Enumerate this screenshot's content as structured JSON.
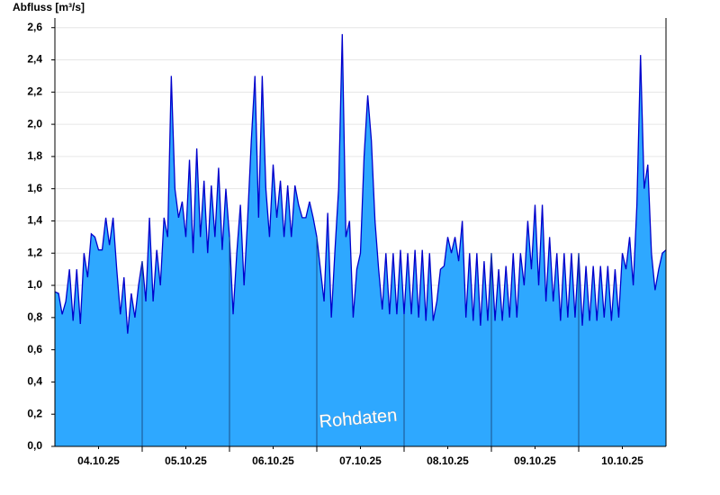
{
  "chart_data": {
    "type": "area",
    "y_label": "Abfluss [m³/s]",
    "annotation": "Rohdaten",
    "fill_color": "#2ea8ff",
    "line_color": "#0000cc",
    "grid": true,
    "xlim": [
      0,
      168
    ],
    "ylim": [
      0,
      2.66
    ],
    "yticks": [
      {
        "value": 0,
        "label": "0,0"
      },
      {
        "value": 0.2,
        "label": "0,2"
      },
      {
        "value": 0.4,
        "label": "0,4"
      },
      {
        "value": 0.6,
        "label": "0,6"
      },
      {
        "value": 0.8,
        "label": "0,8"
      },
      {
        "value": 1.0,
        "label": "1,0"
      },
      {
        "value": 1.2,
        "label": "1,2"
      },
      {
        "value": 1.4,
        "label": "1,4"
      },
      {
        "value": 1.6,
        "label": "1,6"
      },
      {
        "value": 1.8,
        "label": "1,8"
      },
      {
        "value": 2.0,
        "label": "2,0"
      },
      {
        "value": 2.2,
        "label": "2,2"
      },
      {
        "value": 2.4,
        "label": "2,4"
      },
      {
        "value": 2.6,
        "label": "2,6"
      }
    ],
    "xticks": [
      {
        "value": 12,
        "label": "04.10.25"
      },
      {
        "value": 36,
        "label": "05.10.25"
      },
      {
        "value": 60,
        "label": "06.10.25"
      },
      {
        "value": 84,
        "label": "07.10.25"
      },
      {
        "value": 108,
        "label": "08.10.25"
      },
      {
        "value": 132,
        "label": "09.10.25"
      },
      {
        "value": 156,
        "label": "10.10.25"
      }
    ],
    "x_day_lines": [
      24,
      48,
      72,
      96,
      120,
      144
    ],
    "x": [
      0,
      1,
      2,
      3,
      4,
      5,
      6,
      7,
      8,
      9,
      10,
      11,
      12,
      13,
      14,
      15,
      16,
      17,
      18,
      19,
      20,
      21,
      22,
      23,
      24,
      25,
      26,
      27,
      28,
      29,
      30,
      31,
      32,
      33,
      34,
      35,
      36,
      37,
      38,
      39,
      40,
      41,
      42,
      43,
      44,
      45,
      46,
      47,
      48,
      49,
      50,
      51,
      52,
      53,
      54,
      55,
      56,
      57,
      58,
      59,
      60,
      61,
      62,
      63,
      64,
      65,
      66,
      67,
      68,
      69,
      70,
      71,
      72,
      73,
      74,
      75,
      76,
      77,
      78,
      79,
      80,
      81,
      82,
      83,
      84,
      85,
      86,
      87,
      88,
      89,
      90,
      91,
      92,
      93,
      94,
      95,
      96,
      97,
      98,
      99,
      100,
      101,
      102,
      103,
      104,
      105,
      106,
      107,
      108,
      109,
      110,
      111,
      112,
      113,
      114,
      115,
      116,
      117,
      118,
      119,
      120,
      121,
      122,
      123,
      124,
      125,
      126,
      127,
      128,
      129,
      130,
      131,
      132,
      133,
      134,
      135,
      136,
      137,
      138,
      139,
      140,
      141,
      142,
      143,
      144,
      145,
      146,
      147,
      148,
      149,
      150,
      151,
      152,
      153,
      154,
      155,
      156,
      157,
      158,
      159,
      160,
      161,
      162,
      163,
      164,
      165,
      166,
      167,
      168
    ],
    "values": [
      0.96,
      0.95,
      0.82,
      0.9,
      1.1,
      0.78,
      1.1,
      0.76,
      1.2,
      1.05,
      1.32,
      1.3,
      1.22,
      1.22,
      1.42,
      1.25,
      1.42,
      1.1,
      0.82,
      1.05,
      0.7,
      0.95,
      0.8,
      1.0,
      1.15,
      0.9,
      1.42,
      0.9,
      1.22,
      1.0,
      1.42,
      1.3,
      2.3,
      1.6,
      1.42,
      1.52,
      1.3,
      1.78,
      1.2,
      1.85,
      1.3,
      1.65,
      1.2,
      1.62,
      1.3,
      1.73,
      1.22,
      1.6,
      1.3,
      0.82,
      1.2,
      1.5,
      1.0,
      1.42,
      1.9,
      2.3,
      1.42,
      2.3,
      1.6,
      1.3,
      1.75,
      1.42,
      1.65,
      1.3,
      1.62,
      1.3,
      1.62,
      1.5,
      1.42,
      1.42,
      1.52,
      1.42,
      1.3,
      1.1,
      0.9,
      1.45,
      0.8,
      1.22,
      1.6,
      2.56,
      1.3,
      1.4,
      0.8,
      1.1,
      1.2,
      1.8,
      2.18,
      1.9,
      1.4,
      1.1,
      0.85,
      1.2,
      0.82,
      1.2,
      0.82,
      1.22,
      0.82,
      1.2,
      0.82,
      1.22,
      0.8,
      1.22,
      0.78,
      1.2,
      0.78,
      0.9,
      1.1,
      1.12,
      1.3,
      1.2,
      1.3,
      1.15,
      1.4,
      0.8,
      1.2,
      0.78,
      1.2,
      0.75,
      1.15,
      0.78,
      1.2,
      0.78,
      1.1,
      0.78,
      1.12,
      0.8,
      1.2,
      0.8,
      1.2,
      1.0,
      1.4,
      1.1,
      1.5,
      1.0,
      1.5,
      0.9,
      1.3,
      0.9,
      1.2,
      0.78,
      1.2,
      0.8,
      1.2,
      0.8,
      1.2,
      0.75,
      1.12,
      0.78,
      1.12,
      0.78,
      1.12,
      0.8,
      1.12,
      0.78,
      1.1,
      0.8,
      1.2,
      1.1,
      1.3,
      1.0,
      1.5,
      2.43,
      1.6,
      1.75,
      1.2,
      0.97,
      1.1,
      1.2,
      1.22
    ]
  }
}
